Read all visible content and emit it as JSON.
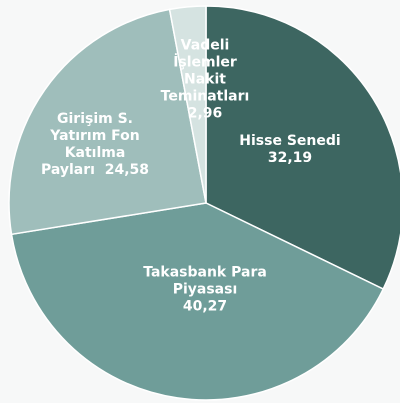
{
  "chart_data": {
    "type": "pie",
    "categories": [
      "Hisse Senedi",
      "Takasbank Para Piyasası",
      "Girişim S. Yatırım Fon Katılma Payları",
      "Vadeli İşlemler Nakit Teminatları"
    ],
    "values": [
      32.19,
      40.27,
      24.58,
      2.96
    ],
    "value_labels": [
      "32,19",
      "40,27",
      "24,58",
      "2,96"
    ],
    "colors": [
      "#3d6661",
      "#6f9d99",
      "#9fbebb",
      "#d5e3e1"
    ]
  }
}
